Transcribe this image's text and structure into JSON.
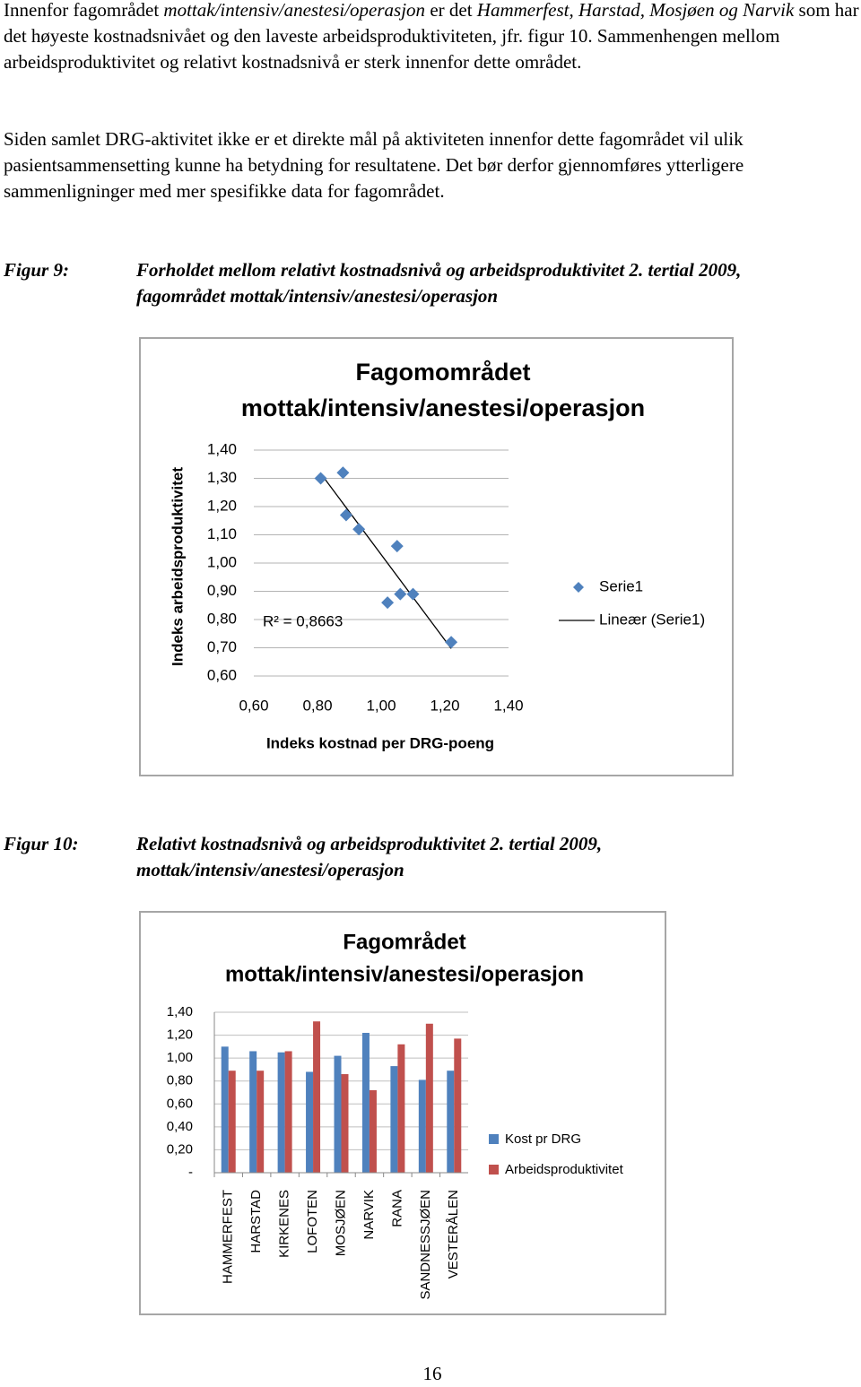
{
  "paragraphs": [
    {
      "runs": [
        {
          "text": "Innenfor fagområdet ",
          "italic": false
        },
        {
          "text": "mottak/intensiv/anestesi/operasjon",
          "italic": true
        },
        {
          "text": " er det ",
          "italic": false
        },
        {
          "text": "Hammerfest, Harstad, Mosjøen og Narvik",
          "italic": true
        },
        {
          "text": " som har det høyeste kostnadsnivået og den laveste arbeidsproduktiviteten, jfr. figur 10. Sammenhengen mellom arbeidsproduktivitet og relativt kostnadsnivå er sterk innenfor dette området.",
          "italic": false
        }
      ]
    },
    {
      "runs": [
        {
          "text": "Siden samlet DRG-aktivitet ikke er et direkte mål på aktiviteten innenfor dette fagområdet vil ulik pasientsammensetting kunne ha betydning for resultatene. Det bør derfor gjennomføres ytterligere sammenligninger med mer spesifikke data for fagområdet.",
          "italic": false
        }
      ]
    }
  ],
  "figures": [
    {
      "label": "Figur 9:",
      "caption": "Forholdet mellom relativt kostnadsnivå og arbeidsproduktivitet 2. tertial 2009, fagområdet mottak/intensiv/anestesi/operasjon"
    },
    {
      "label": "Figur 10:",
      "caption": "Relativt kostnadsnivå og arbeidsproduktivitet 2. tertial 2009, mottak/intensiv/anestesi/operasjon"
    }
  ],
  "chart_data": [
    {
      "type": "scatter",
      "title": [
        "Fagomområdet",
        "mottak/intensiv/anestesi/operasjon"
      ],
      "x_label": "Indeks kostnad per DRG-poeng",
      "y_label": "Indeks arbeidsproduktivitet",
      "series": [
        {
          "name": "Serie1",
          "color": "#4f81bd",
          "x": [
            1.1,
            1.06,
            1.05,
            0.88,
            1.02,
            1.22,
            0.93,
            0.81,
            0.89
          ],
          "values": [
            0.89,
            0.89,
            1.06,
            1.32,
            0.86,
            0.72,
            1.12,
            1.3,
            1.17
          ]
        }
      ],
      "trendline": {
        "name": "Lineær (Serie1)",
        "color": "#000000",
        "annotation": "R² = 0,8663"
      },
      "xlim": [
        0.6,
        1.4
      ],
      "xticks": [
        {
          "value": 0.6,
          "label": "0,60"
        },
        {
          "value": 0.8,
          "label": "0,80"
        },
        {
          "value": 1.0,
          "label": "1,00"
        },
        {
          "value": 1.2,
          "label": "1,20"
        },
        {
          "value": 1.4,
          "label": "1,40"
        }
      ],
      "ylim": [
        0.6,
        1.4
      ],
      "yticks": [
        {
          "value": 0.6,
          "label": "0,60"
        },
        {
          "value": 0.7,
          "label": "0,70"
        },
        {
          "value": 0.8,
          "label": "0,80"
        },
        {
          "value": 0.9,
          "label": "0,90"
        },
        {
          "value": 1.0,
          "label": "1,00"
        },
        {
          "value": 1.1,
          "label": "1,10"
        },
        {
          "value": 1.2,
          "label": "1,20"
        },
        {
          "value": 1.3,
          "label": "1,30"
        },
        {
          "value": 1.4,
          "label": "1,40"
        }
      ],
      "grid": true,
      "legend": "right"
    },
    {
      "type": "bar",
      "title": [
        "Fagområdet",
        "mottak/intensiv/anestesi/operasjon"
      ],
      "categories": [
        "HAMMERFEST",
        "HARSTAD",
        "KIRKENES",
        "LOFOTEN",
        "MOSJØEN",
        "NARVIK",
        "RANA",
        "SANDNESSJØEN",
        "VESTERÅLEN"
      ],
      "series": [
        {
          "name": "Kost pr DRG",
          "color": "#4f81bd",
          "values": [
            1.1,
            1.06,
            1.05,
            0.88,
            1.02,
            1.22,
            0.93,
            0.81,
            0.89
          ]
        },
        {
          "name": "Arbeidsproduktivitet",
          "color": "#c0504d",
          "values": [
            0.89,
            0.89,
            1.06,
            1.32,
            0.86,
            0.72,
            1.12,
            1.3,
            1.17
          ]
        }
      ],
      "ylim": [
        0,
        1.4
      ],
      "yticks": [
        {
          "value": 0,
          "label": "-"
        },
        {
          "value": 0.2,
          "label": "0,20"
        },
        {
          "value": 0.4,
          "label": "0,40"
        },
        {
          "value": 0.6,
          "label": "0,60"
        },
        {
          "value": 0.8,
          "label": "0,80"
        },
        {
          "value": 1.0,
          "label": "1,00"
        },
        {
          "value": 1.2,
          "label": "1,20"
        },
        {
          "value": 1.4,
          "label": "1,40"
        }
      ],
      "grid": true,
      "legend": "right"
    }
  ],
  "page_number": "16"
}
